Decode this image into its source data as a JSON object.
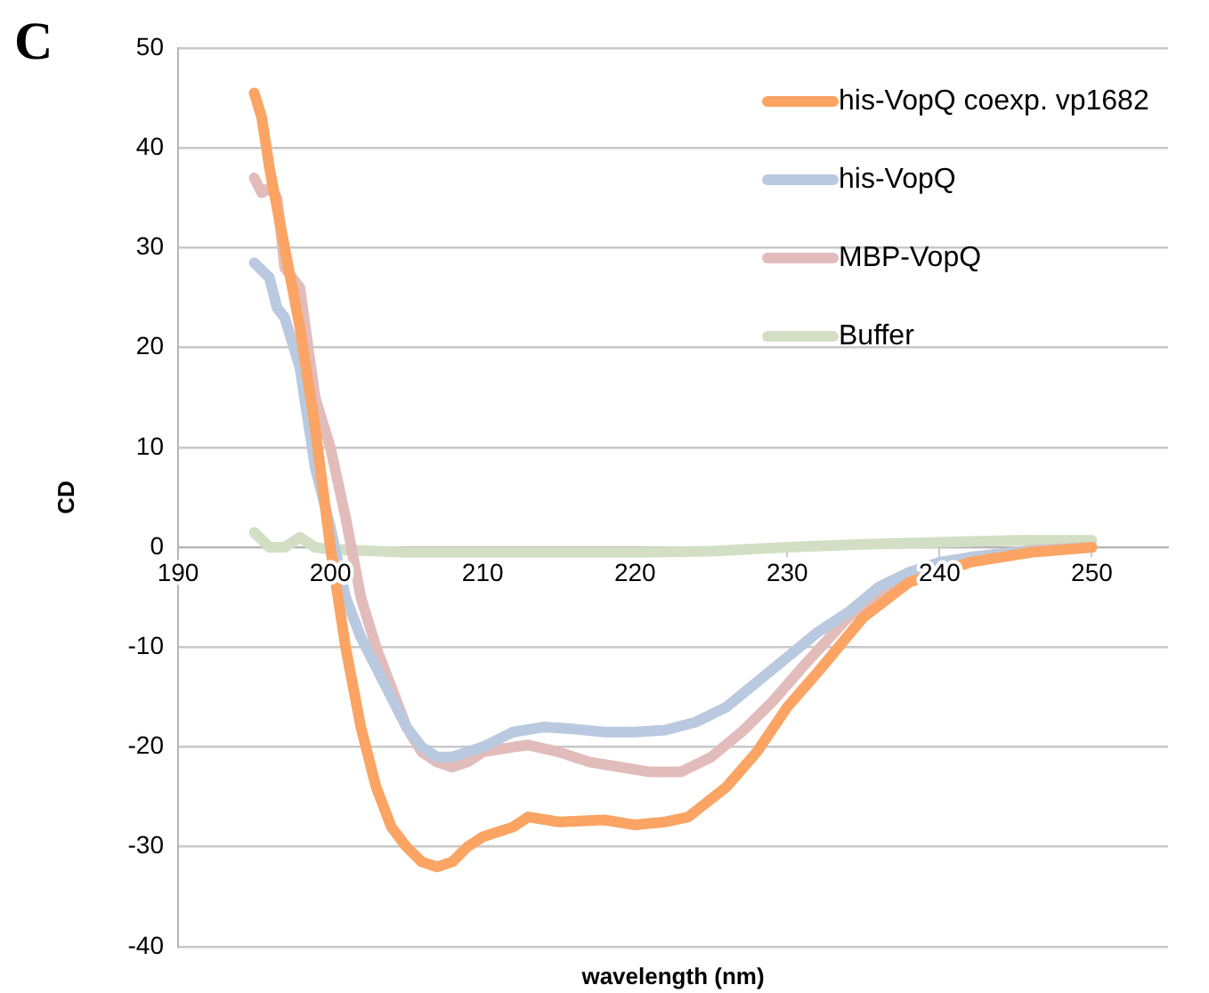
{
  "chart_data": {
    "type": "line",
    "title": "C",
    "xlabel": "wavelength (nm)",
    "ylabel": "CD",
    "xlim": [
      190,
      255
    ],
    "xticks": [
      190,
      200,
      210,
      220,
      230,
      240,
      250
    ],
    "ylim": [
      -40,
      50
    ],
    "yticks": [
      -40,
      -30,
      -20,
      -10,
      0,
      10,
      20,
      30,
      40,
      50
    ],
    "grid": "y",
    "legend": "top right",
    "marker": "none",
    "line_style": "solid",
    "series": [
      {
        "name": "his-VopQ coexp. vp1682",
        "color": "#fba463",
        "x": [
          195,
          195.5,
          196,
          197,
          198,
          199,
          200,
          201,
          202,
          203,
          204,
          205,
          206,
          207,
          208,
          209,
          210,
          212,
          213,
          215,
          218,
          220,
          222,
          223.5,
          226,
          228,
          230,
          232,
          235,
          238,
          242,
          246,
          250
        ],
        "values": [
          45.5,
          43,
          38,
          30,
          22,
          12,
          0,
          -10,
          -18,
          -24,
          -28,
          -30,
          -31.5,
          -32,
          -31.5,
          -30,
          -29,
          -28,
          -27,
          -27.5,
          -27.3,
          -27.8,
          -27.5,
          -27,
          -24,
          -20.5,
          -16,
          -12.5,
          -7,
          -3.5,
          -1.5,
          -0.5,
          0
        ]
      },
      {
        "name": "his-VopQ",
        "color": "#b9c9df",
        "x": [
          195,
          196,
          196.5,
          197,
          198,
          199,
          200,
          201,
          202,
          203,
          204,
          205,
          206,
          207,
          208,
          209,
          210,
          212,
          214,
          216,
          218,
          220,
          222,
          224,
          226,
          228,
          230,
          232,
          234,
          236,
          238,
          240,
          242,
          245,
          250
        ],
        "values": [
          28.5,
          27,
          24,
          23,
          18,
          8,
          2,
          -5,
          -9,
          -12,
          -15,
          -18,
          -20,
          -21,
          -21,
          -20.5,
          -20,
          -18.5,
          -18,
          -18.2,
          -18.5,
          -18.5,
          -18.3,
          -17.5,
          -16,
          -13.5,
          -11,
          -8.5,
          -6.5,
          -4,
          -2.5,
          -1.5,
          -1,
          -0.5,
          0
        ]
      },
      {
        "name": "MBP-VopQ",
        "color": "#e2bcbb",
        "x": [
          195,
          195.5,
          196,
          196.5,
          197,
          198,
          199,
          200,
          201,
          202,
          203,
          204,
          205,
          206,
          207,
          208,
          209,
          210,
          212,
          213,
          215,
          217,
          219,
          221,
          223,
          225,
          227,
          229,
          231,
          234,
          237,
          239,
          242,
          246,
          250
        ],
        "values": [
          37,
          35.5,
          36,
          35,
          28,
          26,
          15,
          10,
          3,
          -5,
          -10,
          -14,
          -18,
          -20.5,
          -21.5,
          -22,
          -21.5,
          -20.5,
          -20,
          -19.8,
          -20.5,
          -21.5,
          -22,
          -22.5,
          -22.5,
          -21,
          -18.5,
          -15.5,
          -12,
          -7,
          -4,
          -2,
          -1,
          -0.3,
          0
        ]
      },
      {
        "name": "Buffer",
        "color": "#d2dfc4",
        "x": [
          195,
          196,
          197,
          198,
          199,
          200,
          205,
          210,
          215,
          220,
          225,
          230,
          235,
          240,
          245,
          250
        ],
        "values": [
          1.5,
          0,
          0,
          1,
          0,
          -0.2,
          -0.5,
          -0.5,
          -0.5,
          -0.5,
          -0.4,
          0,
          0.3,
          0.5,
          0.7,
          0.7
        ]
      }
    ]
  }
}
